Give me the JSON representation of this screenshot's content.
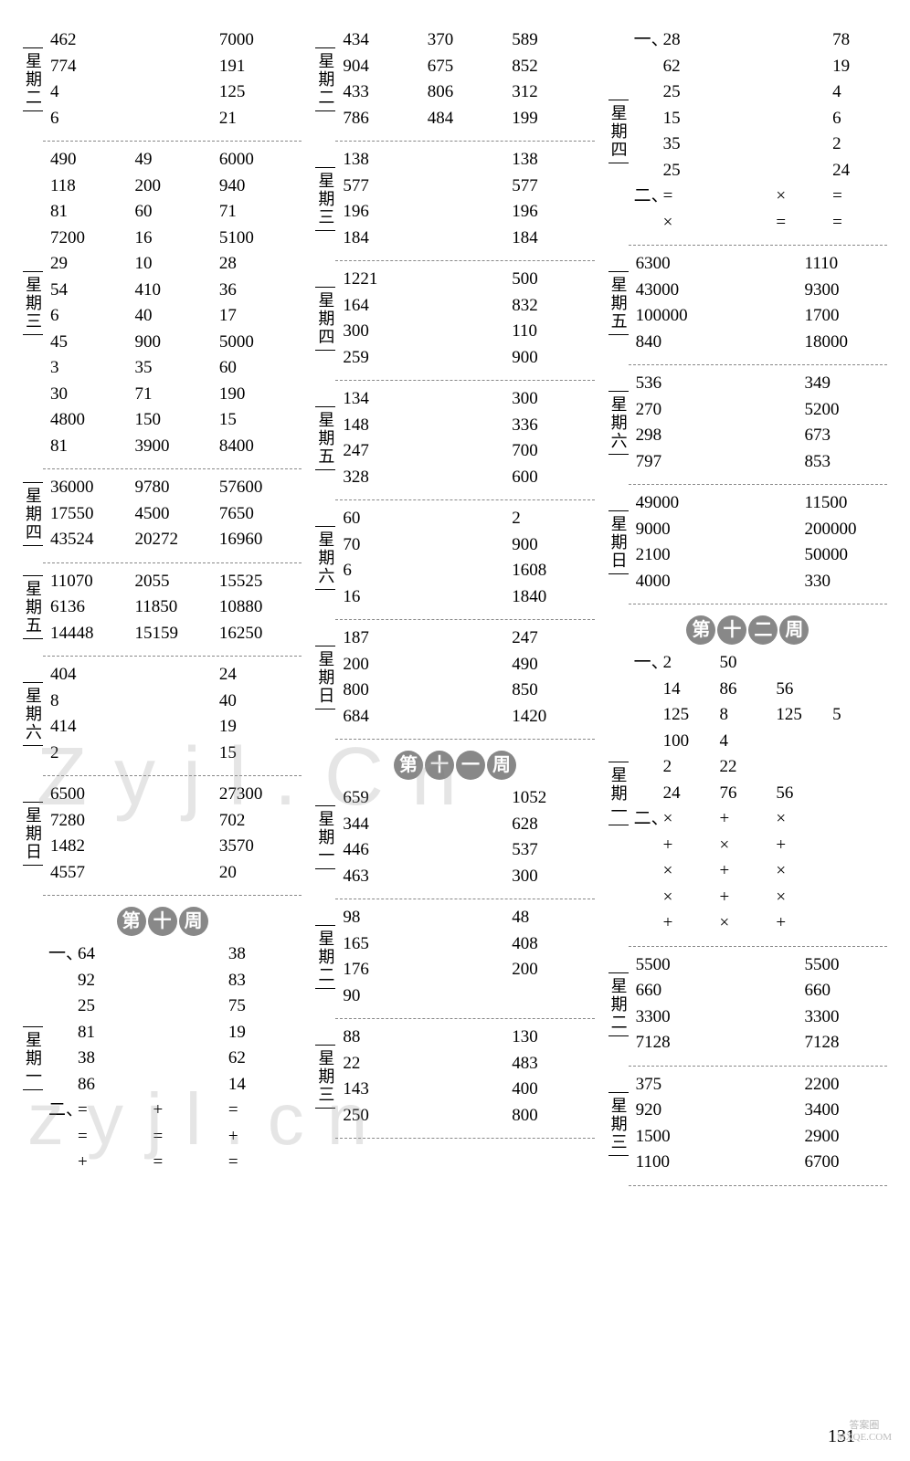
{
  "page_number": "131",
  "watermarks": [
    "Zyjl.Cn",
    "zyjl.cn"
  ],
  "columns": [
    {
      "blocks": [
        {
          "day": "星期二",
          "rows": [
            [
              "462",
              "",
              "7000"
            ],
            [
              "774",
              "",
              "191"
            ],
            [
              "4",
              "",
              "125"
            ],
            [
              "6",
              "",
              "21"
            ]
          ]
        },
        {
          "divider": true
        },
        {
          "day": "星期三",
          "rows": [
            [
              "490",
              "49",
              "6000"
            ],
            [
              "118",
              "200",
              "940"
            ],
            [
              "81",
              "60",
              "71"
            ],
            [
              "7200",
              "16",
              "5100"
            ],
            [
              "29",
              "10",
              "28"
            ],
            [
              "54",
              "410",
              "36"
            ],
            [
              "6",
              "40",
              "17"
            ],
            [
              "45",
              "900",
              "5000"
            ],
            [
              "3",
              "35",
              "60"
            ],
            [
              "30",
              "71",
              "190"
            ],
            [
              "4800",
              "150",
              "15"
            ],
            [
              "81",
              "3900",
              "8400"
            ]
          ]
        },
        {
          "divider": true
        },
        {
          "day": "星期四",
          "rows": [
            [
              "36000",
              "9780",
              "57600"
            ],
            [
              "17550",
              "4500",
              "7650"
            ],
            [
              "43524",
              "20272",
              "16960"
            ]
          ]
        },
        {
          "divider": true
        },
        {
          "day": "星期五",
          "rows": [
            [
              "11070",
              "2055",
              "15525"
            ],
            [
              "6136",
              "11850",
              "10880"
            ],
            [
              "14448",
              "15159",
              "16250"
            ]
          ]
        },
        {
          "divider": true
        },
        {
          "day": "星期六",
          "rows": [
            [
              "404",
              "",
              "24"
            ],
            [
              "8",
              "",
              "40"
            ],
            [
              "414",
              "",
              "19"
            ],
            [
              "2",
              "",
              "15"
            ]
          ]
        },
        {
          "divider": true
        },
        {
          "day": "星期日",
          "rows": [
            [
              "6500",
              "",
              "27300"
            ],
            [
              "7280",
              "",
              "702"
            ],
            [
              "1482",
              "",
              "3570"
            ],
            [
              "4557",
              "",
              "20"
            ]
          ]
        },
        {
          "divider": true
        },
        {
          "week": "第十周"
        },
        {
          "day": "星期一",
          "rows": [
            [
              "一、",
              "64",
              "",
              "38"
            ],
            [
              "",
              "92",
              "",
              "83"
            ],
            [
              "",
              "25",
              "",
              "75"
            ],
            [
              "",
              "81",
              "",
              "19"
            ],
            [
              "",
              "38",
              "",
              "62"
            ],
            [
              "",
              "86",
              "",
              "14"
            ],
            [
              "二、",
              "=",
              "+",
              "="
            ],
            [
              "",
              "=",
              "=",
              "+"
            ],
            [
              "",
              "+",
              "=",
              "="
            ]
          ],
          "four": true
        }
      ]
    },
    {
      "blocks": [
        {
          "day": "星期二",
          "rows": [
            [
              "434",
              "370",
              "589"
            ],
            [
              "904",
              "675",
              "852"
            ],
            [
              "433",
              "806",
              "312"
            ],
            [
              "786",
              "484",
              "199"
            ]
          ]
        },
        {
          "divider": true
        },
        {
          "day": "星期三",
          "rows": [
            [
              "138",
              "",
              "138"
            ],
            [
              "577",
              "",
              "577"
            ],
            [
              "196",
              "",
              "196"
            ],
            [
              "184",
              "",
              "184"
            ]
          ]
        },
        {
          "divider": true
        },
        {
          "day": "星期四",
          "rows": [
            [
              "1221",
              "",
              "500"
            ],
            [
              "164",
              "",
              "832"
            ],
            [
              "300",
              "",
              "110"
            ],
            [
              "259",
              "",
              "900"
            ]
          ]
        },
        {
          "divider": true
        },
        {
          "day": "星期五",
          "rows": [
            [
              "134",
              "",
              "300"
            ],
            [
              "148",
              "",
              "336"
            ],
            [
              "247",
              "",
              "700"
            ],
            [
              "328",
              "",
              "600"
            ]
          ]
        },
        {
          "divider": true
        },
        {
          "day": "星期六",
          "rows": [
            [
              "60",
              "",
              "2"
            ],
            [
              "70",
              "",
              "900"
            ],
            [
              "6",
              "",
              "1608"
            ],
            [
              "16",
              "",
              "1840"
            ]
          ]
        },
        {
          "divider": true
        },
        {
          "day": "星期日",
          "rows": [
            [
              "187",
              "",
              "247"
            ],
            [
              "200",
              "",
              "490"
            ],
            [
              "800",
              "",
              "850"
            ],
            [
              "684",
              "",
              "1420"
            ]
          ]
        },
        {
          "divider": true
        },
        {
          "week": "第十一周"
        },
        {
          "day": "星期一",
          "rows": [
            [
              "659",
              "",
              "1052"
            ],
            [
              "344",
              "",
              "628"
            ],
            [
              "446",
              "",
              "537"
            ],
            [
              "463",
              "",
              "300"
            ]
          ]
        },
        {
          "divider": true
        },
        {
          "day": "星期二",
          "rows": [
            [
              "98",
              "",
              "48"
            ],
            [
              "165",
              "",
              "408"
            ],
            [
              "176",
              "",
              "200"
            ],
            [
              "90",
              "",
              ""
            ]
          ]
        },
        {
          "divider": true
        },
        {
          "day": "星期三",
          "rows": [
            [
              "88",
              "",
              "130"
            ],
            [
              "22",
              "",
              "483"
            ],
            [
              "143",
              "",
              "400"
            ],
            [
              "250",
              "",
              "800"
            ]
          ]
        },
        {
          "divider": true
        }
      ]
    },
    {
      "blocks": [
        {
          "day": "星期四",
          "rows": [
            [
              "一、",
              "28",
              "",
              "",
              "78"
            ],
            [
              "",
              "62",
              "",
              "",
              "19"
            ],
            [
              "",
              "25",
              "",
              "",
              "4"
            ],
            [
              "",
              "15",
              "",
              "",
              "6"
            ],
            [
              "",
              "35",
              "",
              "",
              "2"
            ],
            [
              "",
              "25",
              "",
              "",
              "24"
            ],
            [
              "二、",
              "=",
              "",
              "×",
              "="
            ],
            [
              "",
              "×",
              "",
              "=",
              "="
            ]
          ],
          "five": true
        },
        {
          "divider": true
        },
        {
          "day": "星期五",
          "rows": [
            [
              "6300",
              "",
              "1110"
            ],
            [
              "43000",
              "",
              "9300"
            ],
            [
              "100000",
              "",
              "1700"
            ],
            [
              "840",
              "",
              "18000"
            ]
          ]
        },
        {
          "divider": true
        },
        {
          "day": "星期六",
          "rows": [
            [
              "536",
              "",
              "349"
            ],
            [
              "270",
              "",
              "5200"
            ],
            [
              "298",
              "",
              "673"
            ],
            [
              "797",
              "",
              "853"
            ]
          ]
        },
        {
          "divider": true
        },
        {
          "day": "星期日",
          "rows": [
            [
              "49000",
              "",
              "11500"
            ],
            [
              "9000",
              "",
              "200000"
            ],
            [
              "2100",
              "",
              "50000"
            ],
            [
              "4000",
              "",
              "330"
            ]
          ]
        },
        {
          "divider": true
        },
        {
          "week": "第十二周"
        },
        {
          "day": "星期一",
          "rows": [
            [
              "一、",
              "2",
              "50",
              "",
              ""
            ],
            [
              "",
              "14",
              "86",
              "56",
              ""
            ],
            [
              "",
              "125",
              "8",
              "125",
              "5"
            ],
            [
              "",
              "100",
              "4",
              "",
              ""
            ],
            [
              "",
              "2",
              "22",
              "",
              ""
            ],
            [
              "",
              "24",
              "76",
              "56",
              ""
            ],
            [
              "二、",
              "×",
              "+",
              "×",
              ""
            ],
            [
              "",
              "+",
              "×",
              "+",
              ""
            ],
            [
              "",
              "×",
              "+",
              "×",
              ""
            ],
            [
              "",
              "×",
              "+",
              "×",
              ""
            ],
            [
              "",
              "+",
              "×",
              "+",
              ""
            ]
          ],
          "five": true
        },
        {
          "divider": true
        },
        {
          "day": "星期二",
          "rows": [
            [
              "5500",
              "",
              "5500"
            ],
            [
              "660",
              "",
              "660"
            ],
            [
              "3300",
              "",
              "3300"
            ],
            [
              "7128",
              "",
              "7128"
            ]
          ]
        },
        {
          "divider": true
        },
        {
          "day": "星期三",
          "rows": [
            [
              "375",
              "",
              "2200"
            ],
            [
              "920",
              "",
              "3400"
            ],
            [
              "1500",
              "",
              "2900"
            ],
            [
              "1100",
              "",
              "6700"
            ]
          ]
        },
        {
          "divider": true
        }
      ]
    }
  ]
}
